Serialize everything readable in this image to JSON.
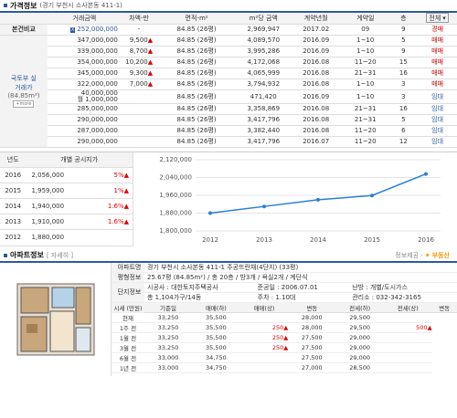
{
  "price_section": {
    "title": "가격정보",
    "location": "(경기 부천시 소사본동 411-1)",
    "headers": [
      "거래금액",
      "차액-만",
      "면적-m²",
      "m²당 금액",
      "계약년월",
      "계약일",
      "층"
    ],
    "filter_value": "전체",
    "own_label": "본건비교",
    "own_row": {
      "price": "252,000,000",
      "diff": "-",
      "area": "84.85 (26평)",
      "per_m2": "2,969,947",
      "ym": "2017.02",
      "day": "09",
      "floor": "9",
      "type": "경매"
    },
    "group_label": "국토부 실거래가",
    "group_area": "(84.85m²)",
    "more_button": "+more",
    "rows": [
      {
        "price": "347,000,000",
        "diff": "9,500",
        "area": "84.85 (26평)",
        "per_m2": "4,089,570",
        "ym": "2016.09",
        "day": "1~10",
        "floor": "5",
        "type": "매매"
      },
      {
        "price": "339,000,000",
        "diff": "8,700",
        "area": "84.85 (26평)",
        "per_m2": "3,995,286",
        "ym": "2016.09",
        "day": "1~10",
        "floor": "9",
        "type": "매매"
      },
      {
        "price": "354,000,000",
        "diff": "10,200",
        "area": "84.85 (26평)",
        "per_m2": "4,172,068",
        "ym": "2016.08",
        "day": "11~20",
        "floor": "15",
        "type": "매매"
      },
      {
        "price": "345,000,000",
        "diff": "9,300",
        "area": "84.85 (26평)",
        "per_m2": "4,065,999",
        "ym": "2016.08",
        "day": "21~31",
        "floor": "16",
        "type": "매매"
      },
      {
        "price": "322,000,000",
        "diff": "7,000",
        "area": "84.85 (26평)",
        "per_m2": "3,794,932",
        "ym": "2016.08",
        "day": "1~10",
        "floor": "3",
        "type": "매매"
      },
      {
        "price": "40,000,000",
        "price2": "월 1,000,000",
        "diff": "",
        "area": "84.85 (26평)",
        "per_m2": "471,420",
        "ym": "2016.09",
        "day": "1~10",
        "floor": "3",
        "type": "임대"
      },
      {
        "price": "285,000,000",
        "diff": "",
        "area": "84.85 (26평)",
        "per_m2": "3,358,869",
        "ym": "2016.08",
        "day": "21~31",
        "floor": "16",
        "type": "임대"
      },
      {
        "price": "290,000,000",
        "diff": "",
        "area": "84.85 (26평)",
        "per_m2": "3,417,796",
        "ym": "2016.08",
        "day": "21~31",
        "floor": "5",
        "type": "임대"
      },
      {
        "price": "287,000,000",
        "diff": "",
        "area": "84.85 (26평)",
        "per_m2": "3,382,440",
        "ym": "2016.08",
        "day": "11~20",
        "floor": "6",
        "type": "임대"
      },
      {
        "price": "290,000,000",
        "diff": "",
        "area": "84.85 (26평)",
        "per_m2": "3,417,796",
        "ym": "2016.07",
        "day": "11~20",
        "floor": "12",
        "type": "임대"
      }
    ]
  },
  "yearly": {
    "headers": [
      "년도",
      "개별 공시지가"
    ],
    "rows": [
      {
        "year": "2016",
        "value": "2,056,000",
        "pct": "5%"
      },
      {
        "year": "2015",
        "value": "1,959,000",
        "pct": "1%"
      },
      {
        "year": "2014",
        "value": "1,940,000",
        "pct": "1.6%"
      },
      {
        "year": "2013",
        "value": "1,910,000",
        "pct": "1.6%"
      },
      {
        "year": "2012",
        "value": "1,880,000",
        "pct": ""
      }
    ]
  },
  "chart_data": {
    "type": "line",
    "categories": [
      "2012",
      "2013",
      "2014",
      "2015",
      "2016"
    ],
    "values": [
      1880000,
      1910000,
      1940000,
      1959000,
      2056000
    ],
    "ylim": [
      1800000,
      2120000
    ],
    "yticks": [
      "2,120,000",
      "2,040,000",
      "1,960,000",
      "1,880,000",
      "1,800,000"
    ],
    "color": "#2a7fd4"
  },
  "apt_section": {
    "title": "아파트정보",
    "detail_button": "자세히",
    "logo_text": "정보제공 -",
    "logo_brand": "부동산",
    "info": [
      {
        "k": "아파트명",
        "v": "경기 부천시 소사본동 411-1 주공뜨란채(4단지) (33평)"
      },
      {
        "k": "평형정보",
        "v": "25.67평 (84.85m²) / 총 20층 / 방3개 / 욕실2개 / 계단식"
      },
      {
        "k": "단지정보",
        "v": "시공사 : 대한토지주택공사",
        "v2": "준공일 : 2006.07.01",
        "v3": "난방 : 개별/도시가스"
      },
      {
        "k": "",
        "v": "총 1,104가구/14동",
        "v2": "주차 : 1.10대",
        "v3": "관리소 : 032-342-3165"
      }
    ],
    "market_label": "시세 (만원)",
    "market_headers": [
      "기준일",
      "매매(하)",
      "매매(상)",
      "변동",
      "전세(하)",
      "전세(상)",
      "변동"
    ],
    "market_rows": [
      {
        "d": "현재",
        "a": "33,250",
        "b": "35,500",
        "c": "",
        "e": "28,000",
        "f": "29,500",
        "g": ""
      },
      {
        "d": "1주 전",
        "a": "33,250",
        "b": "35,500",
        "c": "250",
        "e": "28,000",
        "f": "29,500",
        "g": "500"
      },
      {
        "d": "1월 전",
        "a": "33,250",
        "b": "35,500",
        "c": "250",
        "e": "27,500",
        "f": "29,000",
        "g": ""
      },
      {
        "d": "3월 전",
        "a": "33,250",
        "b": "35,500",
        "c": "250",
        "e": "27,500",
        "f": "29,000",
        "g": ""
      },
      {
        "d": "6월 전",
        "a": "33,000",
        "b": "34,750",
        "c": "",
        "e": "27,500",
        "f": "29,000",
        "g": ""
      },
      {
        "d": "1년 전",
        "a": "33,000",
        "b": "34,750",
        "c": "",
        "e": "27,000",
        "f": "28,500",
        "g": ""
      }
    ]
  }
}
